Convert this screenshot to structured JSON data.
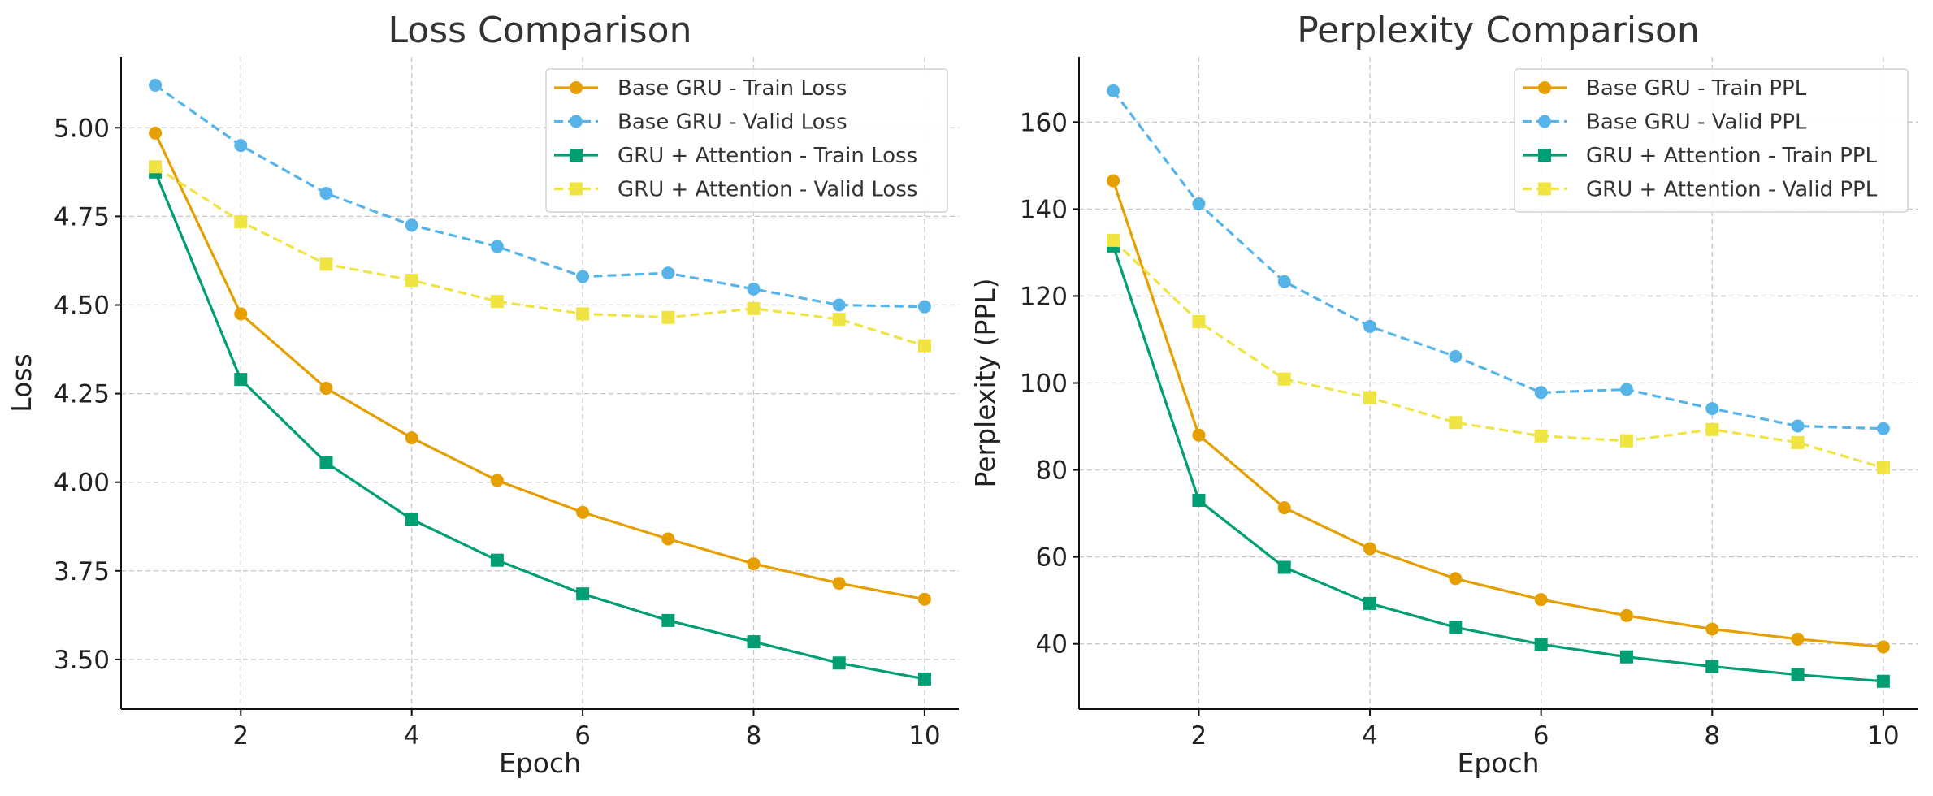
{
  "chart_data": [
    {
      "type": "line",
      "title": "Loss Comparison",
      "xlabel": "Epoch",
      "ylabel": "Loss",
      "xlim": [
        0.6,
        10.4
      ],
      "ylim": [
        3.36,
        5.2
      ],
      "xticks": [
        2,
        4,
        6,
        8,
        10
      ],
      "yticks": [
        3.5,
        3.75,
        4.0,
        4.25,
        4.5,
        4.75,
        5.0
      ],
      "ytick_labels": [
        "3.50",
        "3.75",
        "4.00",
        "4.25",
        "4.50",
        "4.75",
        "5.00"
      ],
      "grid": true,
      "legend_position": "top-right",
      "x": [
        1,
        2,
        3,
        4,
        5,
        6,
        7,
        8,
        9,
        10
      ],
      "series": [
        {
          "name": "Base GRU - Train Loss",
          "color": "#E69F00",
          "marker": "circle",
          "dashed": false,
          "values": [
            4.985,
            4.475,
            4.265,
            4.125,
            4.005,
            3.915,
            3.84,
            3.77,
            3.715,
            3.67
          ]
        },
        {
          "name": "Base GRU - Valid Loss",
          "color": "#56B4E9",
          "marker": "circle",
          "dashed": true,
          "values": [
            5.12,
            4.95,
            4.815,
            4.725,
            4.665,
            4.58,
            4.59,
            4.545,
            4.5,
            4.495
          ]
        },
        {
          "name": "GRU + Attention - Train Loss",
          "color": "#009E73",
          "marker": "square",
          "dashed": false,
          "values": [
            4.875,
            4.29,
            4.055,
            3.895,
            3.78,
            3.685,
            3.61,
            3.55,
            3.49,
            3.445
          ]
        },
        {
          "name": "GRU + Attention - Valid Loss",
          "color": "#F0E442",
          "marker": "square",
          "dashed": true,
          "values": [
            4.89,
            4.735,
            4.615,
            4.57,
            4.51,
            4.475,
            4.465,
            4.49,
            4.46,
            4.385
          ]
        }
      ]
    },
    {
      "type": "line",
      "title": "Perplexity Comparison",
      "xlabel": "Epoch",
      "ylabel": "Perplexity (PPL)",
      "xlim": [
        0.6,
        10.4
      ],
      "ylim": [
        25,
        175
      ],
      "xticks": [
        2,
        4,
        6,
        8,
        10
      ],
      "yticks": [
        40,
        60,
        80,
        100,
        120,
        140,
        160
      ],
      "ytick_labels": [
        "40",
        "60",
        "80",
        "100",
        "120",
        "140",
        "160"
      ],
      "grid": true,
      "legend_position": "top-right",
      "x": [
        1,
        2,
        3,
        4,
        5,
        6,
        7,
        8,
        9,
        10
      ],
      "series": [
        {
          "name": "Base GRU - Train PPL",
          "color": "#E69F00",
          "marker": "circle",
          "dashed": false,
          "values": [
            146.5,
            88,
            71.3,
            61.9,
            55,
            50.2,
            46.5,
            43.4,
            41.1,
            39.3
          ]
        },
        {
          "name": "Base GRU - Valid PPL",
          "color": "#56B4E9",
          "marker": "circle",
          "dashed": true,
          "values": [
            167.2,
            141.2,
            123.3,
            113,
            106.1,
            97.8,
            98.5,
            94.1,
            90.1,
            89.5
          ]
        },
        {
          "name": "GRU + Attention - Train PPL",
          "color": "#009E73",
          "marker": "square",
          "dashed": false,
          "values": [
            131.5,
            73,
            57.6,
            49.3,
            43.8,
            39.9,
            37,
            34.8,
            32.9,
            31.4
          ]
        },
        {
          "name": "GRU + Attention - Valid PPL",
          "color": "#F0E442",
          "marker": "square",
          "dashed": true,
          "values": [
            132.8,
            114.1,
            100.9,
            96.6,
            90.9,
            87.8,
            86.7,
            89.3,
            86.3,
            80.5
          ]
        }
      ]
    }
  ]
}
